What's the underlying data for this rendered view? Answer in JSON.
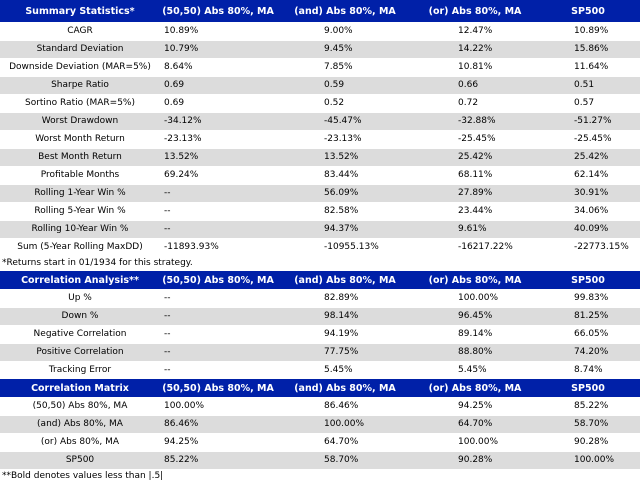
{
  "summary": {
    "header": [
      "Summary Statistics*",
      "(50,50) Abs 80%, MA",
      "(and) Abs 80%, MA",
      "(or) Abs 80%, MA",
      "SP500"
    ],
    "rows": [
      {
        "label": "CAGR",
        "values": [
          "10.89%",
          "9.00%",
          "12.47%",
          "10.89%"
        ]
      },
      {
        "label": "Standard Deviation",
        "values": [
          "10.79%",
          "9.45%",
          "14.22%",
          "15.86%"
        ]
      },
      {
        "label": "Downside Deviation (MAR=5%)",
        "values": [
          "8.64%",
          "7.85%",
          "10.81%",
          "11.64%"
        ]
      },
      {
        "label": "Sharpe Ratio",
        "values": [
          "0.69",
          "0.59",
          "0.66",
          "0.51"
        ]
      },
      {
        "label": "Sortino Ratio (MAR=5%)",
        "values": [
          "0.69",
          "0.52",
          "0.72",
          "0.57"
        ]
      },
      {
        "label": "Worst Drawdown",
        "values": [
          "-34.12%",
          "-45.47%",
          "-32.88%",
          "-51.27%"
        ]
      },
      {
        "label": "Worst Month Return",
        "values": [
          "-23.13%",
          "-23.13%",
          "-25.45%",
          "-25.45%"
        ]
      },
      {
        "label": "Best Month Return",
        "values": [
          "13.52%",
          "13.52%",
          "25.42%",
          "25.42%"
        ]
      },
      {
        "label": "Profitable Months",
        "values": [
          "69.24%",
          "83.44%",
          "68.11%",
          "62.14%"
        ]
      },
      {
        "label": "Rolling 1-Year Win %",
        "values": [
          "--",
          "56.09%",
          "27.89%",
          "30.91%"
        ]
      },
      {
        "label": "Rolling 5-Year Win %",
        "values": [
          "--",
          "82.58%",
          "23.44%",
          "34.06%"
        ]
      },
      {
        "label": "Rolling 10-Year Win %",
        "values": [
          "--",
          "94.37%",
          "9.61%",
          "40.09%"
        ]
      },
      {
        "label": "Sum (5-Year Rolling MaxDD)",
        "values": [
          "-11893.93%",
          "-10955.13%",
          "-16217.22%",
          "-22773.15%"
        ]
      }
    ],
    "note": "*Returns start in 01/1934 for this strategy."
  },
  "correlation_analysis": {
    "header": [
      "Correlation Analysis**",
      "(50,50) Abs 80%, MA",
      "(and) Abs 80%, MA",
      "(or) Abs 80%, MA",
      "SP500"
    ],
    "rows": [
      {
        "label": "Up %",
        "values": [
          "--",
          "82.89%",
          "100.00%",
          "99.83%"
        ]
      },
      {
        "label": "Down %",
        "values": [
          "--",
          "98.14%",
          "96.45%",
          "81.25%"
        ]
      },
      {
        "label": "Negative Correlation",
        "values": [
          "--",
          "94.19%",
          "89.14%",
          "66.05%"
        ]
      },
      {
        "label": "Positive Correlation",
        "values": [
          "--",
          "77.75%",
          "88.80%",
          "74.20%"
        ]
      },
      {
        "label": "Tracking Error",
        "values": [
          "--",
          "5.45%",
          "5.45%",
          "8.74%"
        ]
      }
    ]
  },
  "correlation_matrix": {
    "header": [
      "Correlation Matrix",
      "(50,50) Abs 80%, MA",
      "(and) Abs 80%, MA",
      "(or) Abs 80%, MA",
      "SP500"
    ],
    "rows": [
      {
        "label": "(50,50) Abs 80%, MA",
        "values": [
          "100.00%",
          "86.46%",
          "94.25%",
          "85.22%"
        ]
      },
      {
        "label": "(and) Abs 80%, MA",
        "values": [
          "86.46%",
          "100.00%",
          "64.70%",
          "58.70%"
        ]
      },
      {
        "label": "(or) Abs 80%, MA",
        "values": [
          "94.25%",
          "64.70%",
          "100.00%",
          "90.28%"
        ]
      },
      {
        "label": "SP500",
        "values": [
          "85.22%",
          "58.70%",
          "90.28%",
          "100.00%"
        ]
      }
    ],
    "note": "**Bold denotes values less than |.5|"
  },
  "colors": {
    "header_bg": "#0020a8",
    "header_text": "#ffffff",
    "alt_row": "#dcdcdc"
  }
}
